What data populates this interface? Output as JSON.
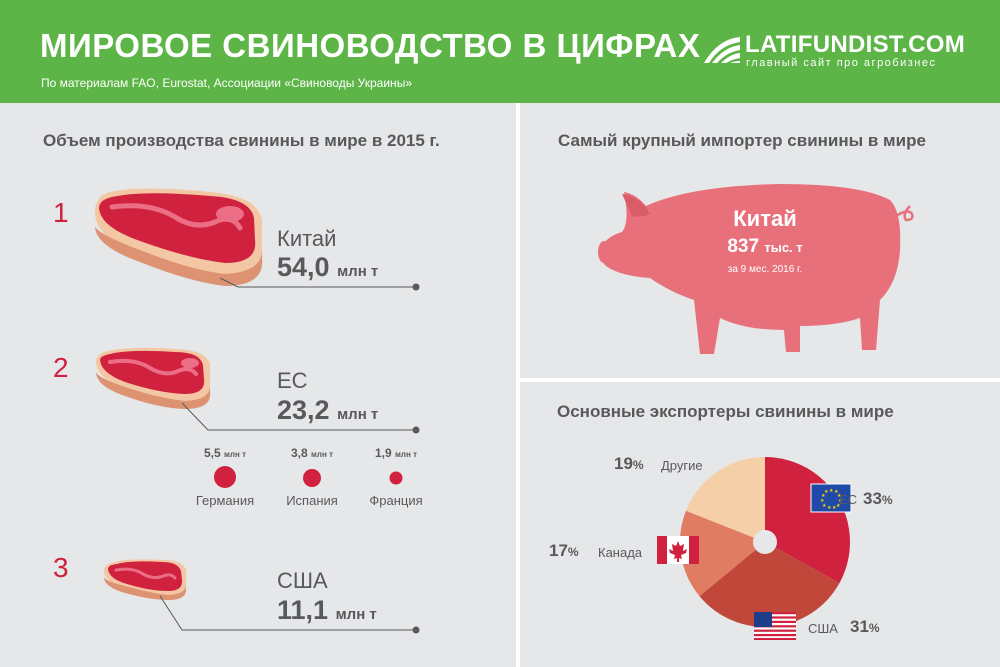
{
  "header": {
    "title": "МИРОВОЕ СВИНОВОДСТВО В ЦИФРАХ",
    "subtitle": "По материалам FAO, Eurostat, Ассоциации «Свиноводы Украины»",
    "logo_name": "LATIFUNDIST.COM",
    "logo_tagline": "главный сайт про агробизнес"
  },
  "colors": {
    "header_green": "#5cb546",
    "accent_red": "#d0223e",
    "pig_pink": "#e8707a",
    "text_gray": "#58595b",
    "background": "#e6e7e8"
  },
  "production": {
    "title": "Объем производства свинины в мире в 2015 г.",
    "items": [
      {
        "rank": "1",
        "country": "Китай",
        "value": "54,0",
        "unit": "млн т"
      },
      {
        "rank": "2",
        "country": "ЕС",
        "value": "23,2",
        "unit": "млн т"
      },
      {
        "rank": "3",
        "country": "США",
        "value": "11,1",
        "unit": "млн т"
      }
    ],
    "eu_breakdown": [
      {
        "value": "5,5",
        "unit": "млн т",
        "name": "Германия"
      },
      {
        "value": "3,8",
        "unit": "млн т",
        "name": "Испания"
      },
      {
        "value": "1,9",
        "unit": "млн т",
        "name": "Франция"
      }
    ]
  },
  "importer": {
    "title": "Самый крупный импортер свинины в мире",
    "country": "Китай",
    "value": "837",
    "unit": "тыс. т",
    "period": "за 9 мес. 2016 г."
  },
  "exporters": {
    "title": "Основные экспортеры свинины в мире",
    "slices": [
      {
        "name": "ЕС",
        "value": 33,
        "pct_sign": "%",
        "color": "#d0223e",
        "flag": "eu-flag-icon"
      },
      {
        "name": "США",
        "value": 31,
        "pct_sign": "%",
        "color": "#c2473b",
        "flag": "usa-flag-icon"
      },
      {
        "name": "Канада",
        "value": 17,
        "pct_sign": "%",
        "color": "#e07c62",
        "flag": "canada-flag-icon"
      },
      {
        "name": "Другие",
        "value": 19,
        "pct_sign": "%",
        "color": "#f5cfa8",
        "flag": ""
      }
    ]
  }
}
